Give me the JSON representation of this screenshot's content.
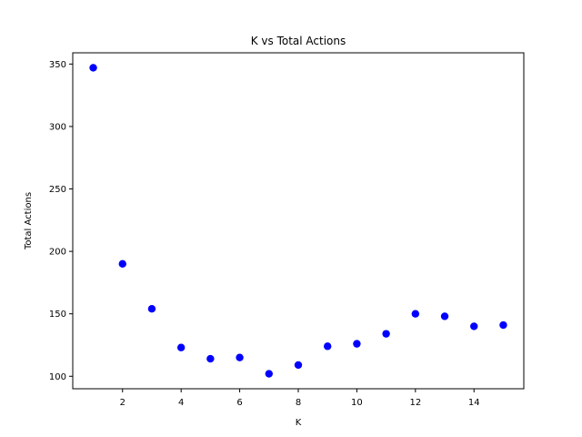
{
  "chart_data": {
    "type": "scatter",
    "title": "K vs Total Actions",
    "xlabel": "K",
    "ylabel": "Total Actions",
    "x": [
      1,
      2,
      3,
      4,
      5,
      6,
      7,
      8,
      9,
      10,
      11,
      12,
      13,
      14,
      15
    ],
    "y": [
      347,
      190,
      154,
      123,
      114,
      115,
      102,
      109,
      124,
      126,
      134,
      150,
      148,
      140,
      141
    ],
    "xlim": [
      0.3,
      15.7
    ],
    "ylim": [
      90,
      359
    ],
    "xticks": [
      2,
      4,
      6,
      8,
      10,
      12,
      14
    ],
    "yticks": [
      100,
      150,
      200,
      250,
      300,
      350
    ],
    "marker_color": "#0000ff",
    "grid": false,
    "legend": "none"
  }
}
